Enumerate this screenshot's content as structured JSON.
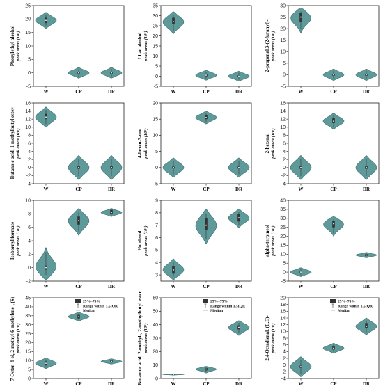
{
  "figure": {
    "categories": [
      "W",
      "CP",
      "DR"
    ],
    "violin_color": "#5f9a9a",
    "box_color": "#333333",
    "median_color": "#ffffff",
    "legend": {
      "box_label": "25%~75%",
      "whisker_label": "Range within 1.5IQR",
      "median_label": "Median"
    }
  },
  "chart_data": [
    {
      "type": "violin",
      "title": "",
      "ylabel": "Phenylethyl alcohol",
      "ylabel_units": "peak areas (10⁵)",
      "ylim": [
        -5,
        25
      ],
      "yticks": [
        -5,
        0,
        5,
        10,
        15,
        20,
        25
      ],
      "series": [
        {
          "name": "W",
          "median": 19.5,
          "q1": 18.5,
          "q3": 20.5,
          "min": 16.5,
          "max": 22.5
        },
        {
          "name": "CP",
          "median": 0,
          "q1": -0.3,
          "q3": 0.3,
          "min": -2,
          "max": 2
        },
        {
          "name": "DR",
          "median": 0,
          "q1": -0.3,
          "q3": 0.3,
          "min": -2,
          "max": 2
        }
      ],
      "legend": false
    },
    {
      "type": "violin",
      "title": "",
      "ylabel": "Lilac alcohol",
      "ylabel_units": "peak areas (10⁵)",
      "ylim": [
        -5,
        35
      ],
      "yticks": [
        -5,
        0,
        5,
        10,
        15,
        20,
        25,
        30,
        35
      ],
      "series": [
        {
          "name": "W",
          "median": 27,
          "q1": 26,
          "q3": 29,
          "min": 21,
          "max": 32
        },
        {
          "name": "CP",
          "median": 0.5,
          "q1": 0,
          "q3": 1,
          "min": -2,
          "max": 3
        },
        {
          "name": "DR",
          "median": 0,
          "q1": -0.4,
          "q3": 0.4,
          "min": -2.5,
          "max": 2.5
        }
      ],
      "legend": false
    },
    {
      "type": "violin",
      "title": "",
      "ylabel": "2-propenal,3-(2-furanyl)-",
      "ylabel_units": "peak areas (10⁵)",
      "ylim": [
        -5,
        30
      ],
      "yticks": [
        -5,
        0,
        5,
        10,
        15,
        20,
        25,
        30
      ],
      "series": [
        {
          "name": "W",
          "median": 25,
          "q1": 23,
          "q3": 27,
          "min": 18,
          "max": 29
        },
        {
          "name": "CP",
          "median": 0,
          "q1": -0.4,
          "q3": 0.4,
          "min": -2.5,
          "max": 2.5
        },
        {
          "name": "DR",
          "median": 0,
          "q1": -0.4,
          "q3": 0.4,
          "min": -2.5,
          "max": 2.5
        }
      ],
      "legend": false
    },
    {
      "type": "violin",
      "title": "",
      "ylabel": "Butanoic acid, 1-methylbutyl ester",
      "ylabel_units": "peak areas (10⁵)",
      "ylim": [
        -4,
        16
      ],
      "yticks": [
        -4,
        -2,
        0,
        2,
        4,
        6,
        8,
        10,
        12,
        14,
        16
      ],
      "series": [
        {
          "name": "W",
          "median": 12.5,
          "q1": 12,
          "q3": 13.3,
          "min": 10,
          "max": 15
        },
        {
          "name": "CP",
          "median": 0,
          "q1": -0.3,
          "q3": 0.3,
          "min": -3,
          "max": 3
        },
        {
          "name": "DR",
          "median": 0,
          "q1": -0.3,
          "q3": 0.3,
          "min": -3,
          "max": 3
        }
      ],
      "legend": false
    },
    {
      "type": "violin",
      "title": "",
      "ylabel": "4-hexen-3-one",
      "ylabel_units": "peak areas (10⁵)",
      "ylim": [
        -5,
        20
      ],
      "yticks": [
        -5,
        0,
        5,
        10,
        15,
        20
      ],
      "series": [
        {
          "name": "W",
          "median": 0,
          "q1": -0.3,
          "q3": 0.3,
          "min": -3,
          "max": 3
        },
        {
          "name": "CP",
          "median": 15.5,
          "q1": 15,
          "q3": 16.2,
          "min": 13.5,
          "max": 17.5
        },
        {
          "name": "DR",
          "median": 0,
          "q1": -0.3,
          "q3": 0.3,
          "min": -3,
          "max": 3
        }
      ],
      "legend": false
    },
    {
      "type": "violin",
      "title": "",
      "ylabel": "2-hexenal",
      "ylabel_units": "peak areas (10⁵)",
      "ylim": [
        -4,
        16
      ],
      "yticks": [
        -4,
        -2,
        0,
        2,
        4,
        6,
        8,
        10,
        12,
        14,
        16
      ],
      "series": [
        {
          "name": "W",
          "median": 0,
          "q1": -0.3,
          "q3": 0.3,
          "min": -3,
          "max": 3
        },
        {
          "name": "CP",
          "median": 11.5,
          "q1": 11,
          "q3": 12.2,
          "min": 9.5,
          "max": 13.5
        },
        {
          "name": "DR",
          "median": 0,
          "q1": -0.3,
          "q3": 0.3,
          "min": -3,
          "max": 3
        }
      ],
      "legend": false
    },
    {
      "type": "violin",
      "title": "",
      "ylabel": "Isobornyl formate",
      "ylabel_units": "peak areas (10⁵)",
      "ylim": [
        -2,
        10
      ],
      "yticks": [
        -2,
        0,
        2,
        4,
        6,
        8,
        10
      ],
      "series": [
        {
          "name": "W",
          "median": 0,
          "q1": -0.3,
          "q3": 0.3,
          "min": -1.8,
          "max": 3
        },
        {
          "name": "CP",
          "median": 7,
          "q1": 6.4,
          "q3": 7.6,
          "min": 4.8,
          "max": 8.8
        },
        {
          "name": "DR",
          "median": 8.2,
          "q1": 8,
          "q3": 8.6,
          "min": 7.6,
          "max": 8.8
        }
      ],
      "legend": false
    },
    {
      "type": "violin",
      "title": "",
      "ylabel": "Hotrienol",
      "ylabel_units": "peak areas (10⁵)",
      "ylim": [
        2.5,
        9
      ],
      "yticks": [
        3,
        4,
        5,
        6,
        7,
        8,
        9
      ],
      "series": [
        {
          "name": "W",
          "median": 3.4,
          "q1": 3.1,
          "q3": 3.7,
          "min": 2.6,
          "max": 4.3
        },
        {
          "name": "CP",
          "median": 7,
          "q1": 6.6,
          "q3": 7.6,
          "min": 5.5,
          "max": 8.3
        },
        {
          "name": "DR",
          "median": 7.6,
          "q1": 7.3,
          "q3": 7.9,
          "min": 6.8,
          "max": 8.3
        }
      ],
      "legend": false
    },
    {
      "type": "violin",
      "title": "",
      "ylabel": "alpha-terpineol",
      "ylabel_units": "peak areas (10⁵)",
      "ylim": [
        -5,
        40
      ],
      "yticks": [
        -5,
        0,
        5,
        10,
        15,
        20,
        25,
        30,
        35,
        40
      ],
      "series": [
        {
          "name": "W",
          "median": 0,
          "q1": -0.3,
          "q3": 0.3,
          "min": -2.5,
          "max": 2.5
        },
        {
          "name": "CP",
          "median": 27,
          "q1": 25,
          "q3": 28.5,
          "min": 20,
          "max": 31
        },
        {
          "name": "DR",
          "median": 9.5,
          "q1": 9,
          "q3": 10,
          "min": 8,
          "max": 11
        }
      ],
      "legend": false
    },
    {
      "type": "violin",
      "title": "",
      "ylabel": "7-Octen-4-ol, 2-methyl-6-methylene-, (S)-",
      "ylabel_units": "peak areas (10⁵)",
      "ylim": [
        0,
        45
      ],
      "yticks": [
        0,
        5,
        10,
        15,
        20,
        25,
        30,
        35,
        40,
        45
      ],
      "series": [
        {
          "name": "W",
          "median": 8.5,
          "q1": 7.5,
          "q3": 9.5,
          "min": 5.5,
          "max": 11.5
        },
        {
          "name": "CP",
          "median": 34.5,
          "q1": 33.5,
          "q3": 35.5,
          "min": 32,
          "max": 37
        },
        {
          "name": "DR",
          "median": 9.5,
          "q1": 9,
          "q3": 10,
          "min": 8,
          "max": 11
        }
      ],
      "legend": true
    },
    {
      "type": "violin",
      "title": "",
      "ylabel": "Butanoic acid, 2-methyl-, 2-methylbutyl ester",
      "ylabel_units": "peak areas (10⁵)",
      "ylim": [
        0,
        60
      ],
      "yticks": [
        0,
        10,
        20,
        30,
        40,
        50,
        60
      ],
      "series": [
        {
          "name": "W",
          "median": 3,
          "q1": 2.8,
          "q3": 3.2,
          "min": 2.5,
          "max": 3.5
        },
        {
          "name": "CP",
          "median": 7,
          "q1": 6,
          "q3": 7.8,
          "min": 4,
          "max": 9
        },
        {
          "name": "DR",
          "median": 38,
          "q1": 36.5,
          "q3": 39.5,
          "min": 32,
          "max": 43
        }
      ],
      "legend": true
    },
    {
      "type": "violin",
      "title": "",
      "ylabel": "2,4-Octadienal, (E,E)-",
      "ylabel_units": "peak areas (10⁵)",
      "ylim": [
        -4,
        20
      ],
      "yticks": [
        -4,
        -2,
        0,
        2,
        4,
        6,
        8,
        10,
        12,
        14,
        16,
        18,
        20
      ],
      "series": [
        {
          "name": "W",
          "median": -0.5,
          "q1": -0.8,
          "q3": -0.2,
          "min": -3.5,
          "max": 2.5
        },
        {
          "name": "CP",
          "median": 5,
          "q1": 4.6,
          "q3": 5.5,
          "min": 3.5,
          "max": 6.5
        },
        {
          "name": "DR",
          "median": 11.5,
          "q1": 11,
          "q3": 12.5,
          "min": 9,
          "max": 14
        }
      ],
      "legend": true
    }
  ]
}
